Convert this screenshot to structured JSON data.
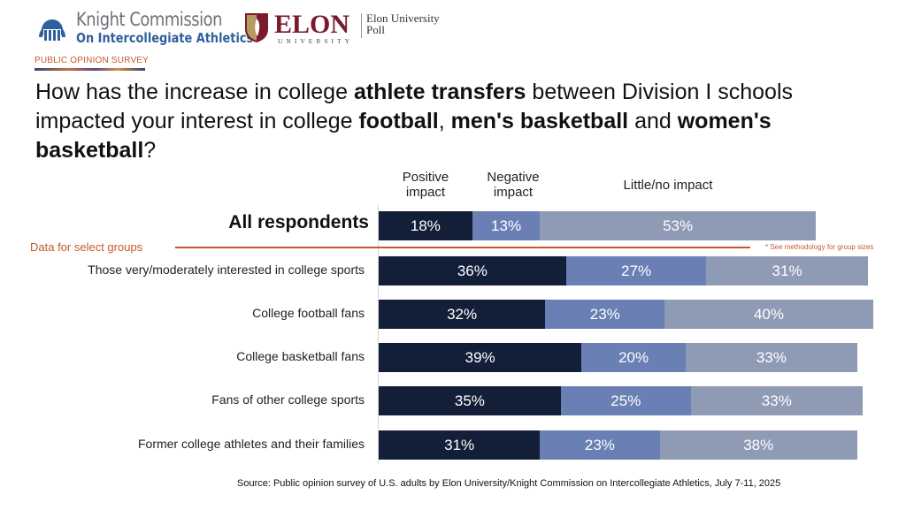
{
  "header": {
    "knight_logo": {
      "line1": "Knight Commission",
      "line2": "On Intercollegiate Athletics",
      "icon": "capitol-dome-icon"
    },
    "elon_logo": {
      "wordmark": "ELON",
      "subtext": "UNIVERSITY",
      "poll_line1": "Elon University",
      "poll_line2": "Poll",
      "icon": "elon-shield-icon"
    },
    "survey_label": "PUBLIC OPINION SURVEY"
  },
  "question": {
    "parts": [
      {
        "text": "How has the increase in college ",
        "bold": false
      },
      {
        "text": "athlete transfers",
        "bold": true
      },
      {
        "text": " between Division I schools impacted your interest in college ",
        "bold": false
      },
      {
        "text": "football",
        "bold": true
      },
      {
        "text": ", ",
        "bold": false
      },
      {
        "text": "men's basketball",
        "bold": true
      },
      {
        "text": " and ",
        "bold": false
      },
      {
        "text": "women's basketball",
        "bold": true
      },
      {
        "text": "?",
        "bold": false
      }
    ]
  },
  "colors": {
    "positive": "#131f38",
    "negative": "#6a7fb4",
    "little": "#8f9ab5",
    "accent": "#c8582a"
  },
  "divider": {
    "label": "Data for select groups",
    "note": "* See methodology for group sizes"
  },
  "source": "Source: Public opinion survey of U.S. adults by Elon University/Knight Commission on Intercollegiate Athletics, July 7-11, 2025",
  "chart_data": {
    "type": "bar",
    "orientation": "horizontal-stacked",
    "title": "How has the increase in college athlete transfers between Division I schools impacted your interest in college football, men's basketball and women's basketball?",
    "xlabel": "",
    "ylabel": "",
    "unit": "%",
    "xlim": [
      0,
      100
    ],
    "grid": false,
    "legend_position": "top",
    "categories": [
      "All respondents",
      "Those very/moderately interested in college sports",
      "College football fans",
      "College basketball fans",
      "Fans of other college sports",
      "Former college athletes and their families"
    ],
    "series": [
      {
        "name": "Positive impact",
        "values": [
          18,
          36,
          32,
          39,
          35,
          31
        ]
      },
      {
        "name": "Negative impact",
        "values": [
          13,
          27,
          23,
          20,
          25,
          23
        ]
      },
      {
        "name": "Little/no impact",
        "values": [
          53,
          31,
          40,
          33,
          33,
          38
        ]
      }
    ],
    "legend": [
      "Positive impact",
      "Negative impact",
      "Little/no impact"
    ]
  }
}
